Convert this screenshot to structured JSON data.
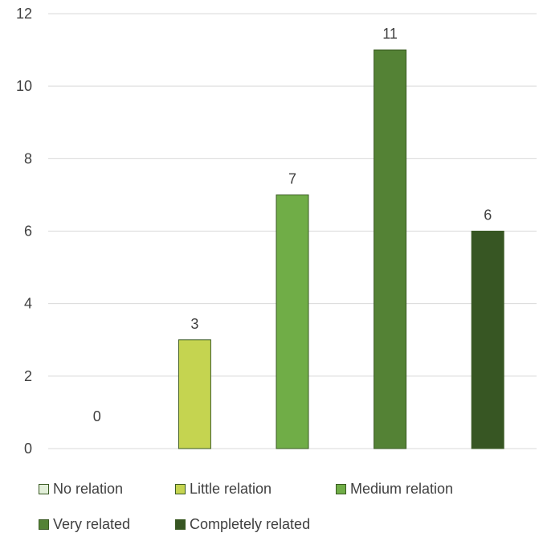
{
  "chart_data": {
    "type": "bar",
    "title": "",
    "xlabel": "",
    "ylabel": "",
    "ylim": [
      0,
      12
    ],
    "yticks": [
      0,
      2,
      4,
      6,
      8,
      10,
      12
    ],
    "grid": true,
    "legend_position": "bottom",
    "categories": [
      "No relation",
      "Little relation",
      "Medium relation",
      "Very related",
      "Completely related"
    ],
    "values": [
      0,
      3,
      7,
      11,
      6
    ],
    "data_labels": [
      "0",
      "3",
      "7",
      "11",
      "6"
    ],
    "colors": [
      "#e2efd9",
      "#c5d450",
      "#70ad47",
      "#548235",
      "#375623"
    ]
  }
}
